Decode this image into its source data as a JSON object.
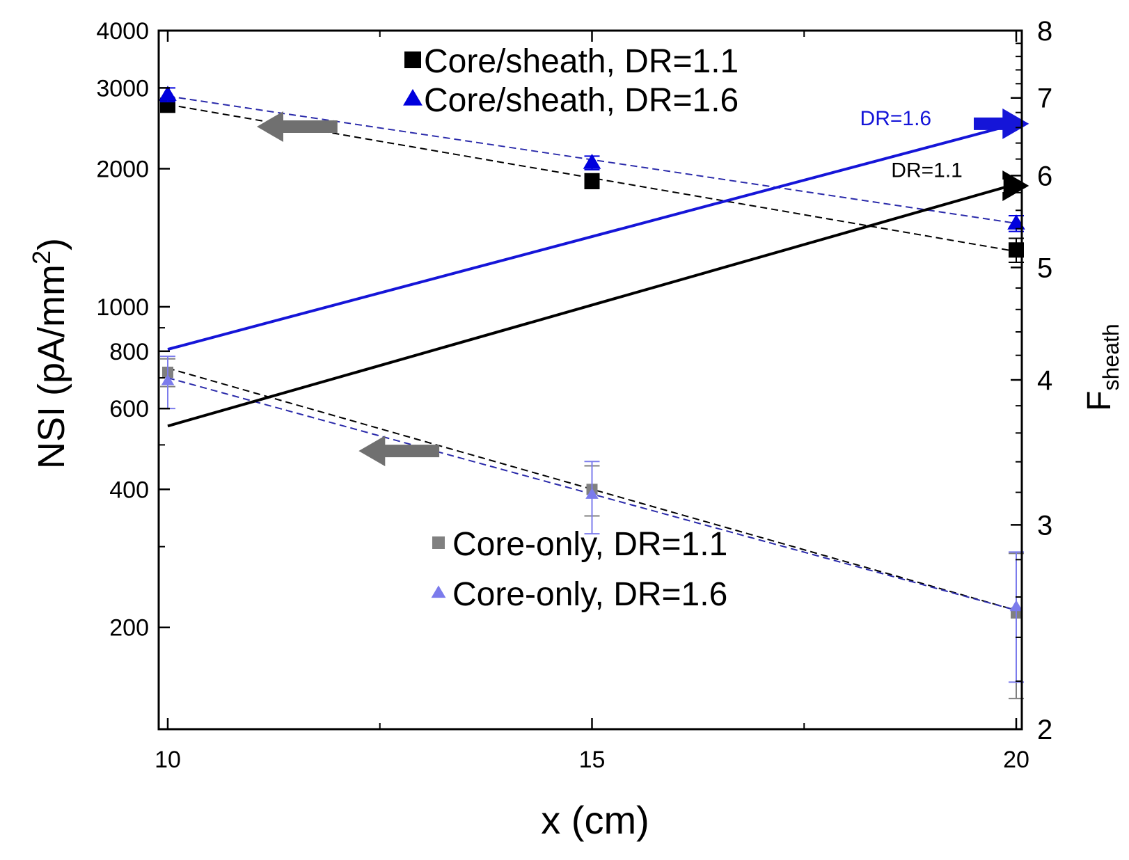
{
  "chart_data": {
    "type": "scatter",
    "title": "",
    "xlabel": "x (cm)",
    "ylabel_left": "NSI (pA/mm",
    "ylabel_left_sup": "2",
    "ylabel_left_close": ")",
    "ylabel_right_main": "F",
    "ylabel_right_sub": "sheath",
    "x_range": [
      9.9,
      20.1
    ],
    "x_ticks": [
      10,
      15,
      20
    ],
    "x_tick_labels": [
      "10",
      "15",
      "20"
    ],
    "y_left_scale": "log",
    "y_left_range": [
      120,
      4000
    ],
    "y_left_labeled_ticks": [
      200,
      400,
      600,
      800,
      1000,
      2000,
      3000,
      4000
    ],
    "y_left_tick_labels": [
      "200",
      "400",
      "600",
      "800",
      "1000",
      "2000",
      "3000",
      "4000"
    ],
    "y_right_scale": "log",
    "y_right_range": [
      2,
      8
    ],
    "y_right_labeled_ticks": [
      2,
      3,
      4,
      5,
      6,
      7,
      8
    ],
    "y_right_tick_labels": [
      "2",
      "3",
      "4",
      "5",
      "6",
      "7",
      "8"
    ],
    "series": [
      {
        "name": "Core/sheath, DR=1.1",
        "axis": "left",
        "marker": "square",
        "color": "#000000",
        "x": [
          10,
          15,
          20
        ],
        "y": [
          2750,
          1880,
          1330
        ],
        "err": [
          80,
          70,
          80
        ],
        "fit": {
          "style": "dashed",
          "color": "#000000",
          "x": [
            10,
            20
          ],
          "y": [
            2760,
            1320
          ]
        }
      },
      {
        "name": "Core/sheath, DR=1.6",
        "axis": "left",
        "marker": "triangle",
        "color": "#0000dd",
        "x": [
          10,
          15,
          20
        ],
        "y": [
          2900,
          2060,
          1520
        ],
        "err": [
          100,
          70,
          60
        ],
        "fit": {
          "style": "dashed",
          "color": "#2a2aaa",
          "x": [
            10,
            20
          ],
          "y": [
            2880,
            1520
          ]
        }
      },
      {
        "name": "Core-only, DR=1.1",
        "axis": "left",
        "marker": "square",
        "color": "#808080",
        "x": [
          10,
          15,
          20
        ],
        "y": [
          720,
          400,
          215
        ],
        "err": [
          50,
          50,
          75
        ],
        "fit": {
          "style": "dashed",
          "color": "#000000",
          "x": [
            10,
            20
          ],
          "y": [
            735,
            218
          ]
        }
      },
      {
        "name": "Core-only, DR=1.6",
        "axis": "left",
        "marker": "triangle",
        "color": "#7b7bec",
        "x": [
          10,
          15,
          20
        ],
        "y": [
          690,
          390,
          222
        ],
        "err": [
          90,
          70,
          70
        ],
        "fit": {
          "style": "dashed",
          "color": "#2a2aaa",
          "x": [
            10,
            20
          ],
          "y": [
            700,
            218
          ]
        }
      },
      {
        "name": "F_sheath DR=1.6",
        "axis": "right",
        "marker": "none",
        "color": "#1515d8",
        "x": [
          10,
          20
        ],
        "y": [
          4.25,
          6.65
        ]
      },
      {
        "name": "F_sheath DR=1.1",
        "axis": "right",
        "marker": "none",
        "color": "#000000",
        "x": [
          10,
          20
        ],
        "y": [
          3.65,
          5.9
        ]
      }
    ],
    "legend_top": [
      "Core/sheath, DR=1.1",
      "Core/sheath, DR=1.6"
    ],
    "legend_bottom": [
      "Core-only, DR=1.1",
      "Core-only, DR=1.6"
    ],
    "annotations": [
      {
        "text": "DR=1.6",
        "color": "#1515d8",
        "axis": "right",
        "x": 16.6,
        "y": 6.65
      },
      {
        "text": "DR=1.1",
        "color": "#000000",
        "axis": "right",
        "x": 17.0,
        "y": 6.0
      }
    ],
    "arrows": [
      {
        "meaning": "left axis",
        "color": "#707070",
        "axis": "left",
        "from_x": 12.0,
        "to_x": 11.05,
        "y": 2470
      },
      {
        "meaning": "left axis",
        "color": "#707070",
        "axis": "left",
        "from_x": 13.2,
        "to_x": 12.25,
        "y": 485
      },
      {
        "meaning": "right axis",
        "color": "#1515d8",
        "axis": "right",
        "from_x": 19.5,
        "to_x": 20.15,
        "y": 6.65
      },
      {
        "meaning": "right axis",
        "color": "#000000",
        "axis": "right",
        "from_x": 19.85,
        "to_x": 20.15,
        "y": 5.88
      }
    ],
    "grid": false
  }
}
